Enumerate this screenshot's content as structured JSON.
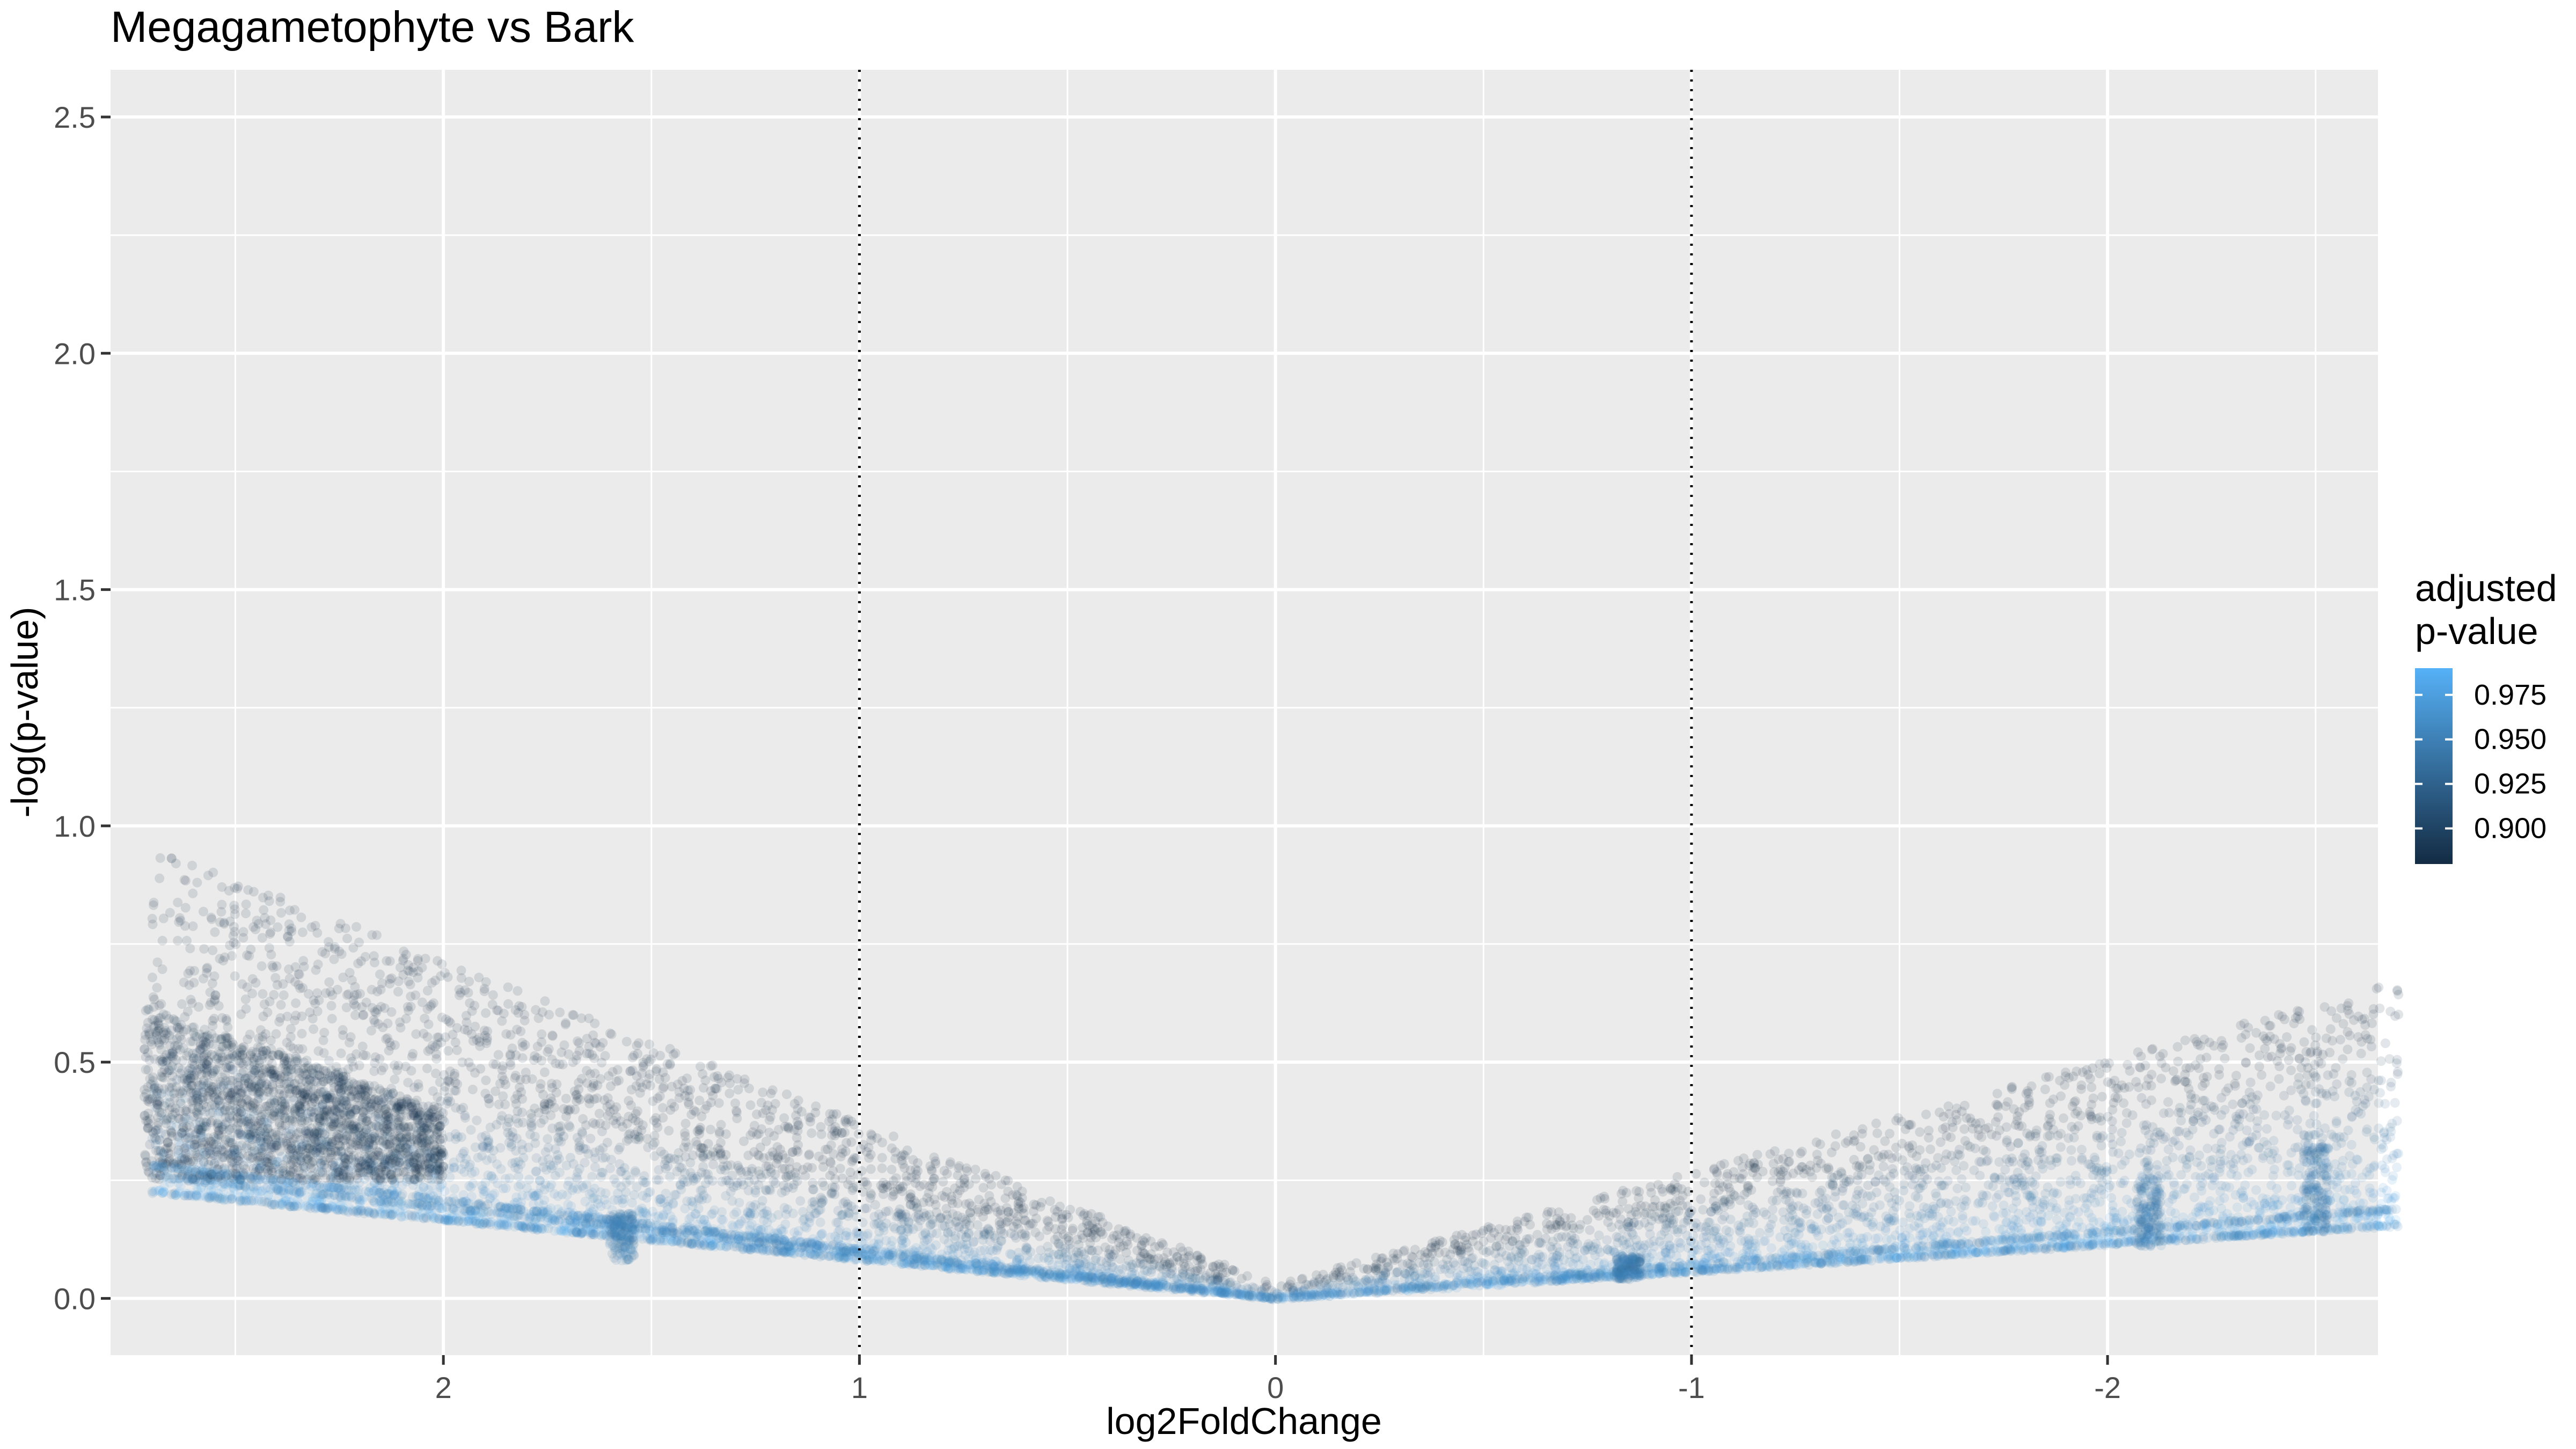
{
  "chart_data": {
    "type": "scatter",
    "title": "Megagametophyte vs Bark",
    "xlabel": "log2FoldChange",
    "ylabel": "-log(p-value)",
    "x_axis_reversed": true,
    "xlim": [
      2.8,
      -2.65
    ],
    "ylim": [
      -0.12,
      2.6
    ],
    "x_ticks": [
      {
        "value": 2,
        "label": "2"
      },
      {
        "value": 1,
        "label": "1"
      },
      {
        "value": 0,
        "label": "0"
      },
      {
        "value": -1,
        "label": "-1"
      },
      {
        "value": -2,
        "label": "-2"
      }
    ],
    "y_ticks": [
      {
        "value": 0.0,
        "label": "0.0"
      },
      {
        "value": 0.5,
        "label": "0.5"
      },
      {
        "value": 1.0,
        "label": "1.0"
      },
      {
        "value": 1.5,
        "label": "1.5"
      },
      {
        "value": 2.0,
        "label": "2.0"
      },
      {
        "value": 2.5,
        "label": "2.5"
      }
    ],
    "reference_lines": [
      {
        "axis": "x",
        "value": 1,
        "style": "dotted"
      },
      {
        "axis": "x",
        "value": -1,
        "style": "dotted"
      }
    ],
    "grid": true,
    "point_opacity": 0.12,
    "colorbar": {
      "title_line1": "adjusted",
      "title_line2": "p-value",
      "range": [
        0.88,
        0.99
      ],
      "ticks": [
        {
          "value": 0.9,
          "label": "0.900"
        },
        {
          "value": 0.925,
          "label": "0.925"
        },
        {
          "value": 0.95,
          "label": "0.950"
        },
        {
          "value": 0.975,
          "label": "0.975"
        }
      ],
      "low_color": "#132B43",
      "high_color": "#56B1F7",
      "position": "right"
    },
    "point_clouds": [
      {
        "x_range": [
          -2.7,
          2.72
        ],
        "y_envelope": "abs_linear",
        "description_units": "data"
      }
    ],
    "bands": [
      {
        "x_from": 2.7,
        "x_to": 0,
        "y_at_from": 0.225,
        "y_at_to": 0
      },
      {
        "x_from": 2.7,
        "x_to": 0,
        "y_at_from": 0.26,
        "y_at_to": 0
      },
      {
        "x_from": 2.7,
        "x_to": 0,
        "y_at_from": 0.28,
        "y_at_to": 0
      },
      {
        "x_from": -2.7,
        "x_to": 0,
        "y_at_from": 0.155,
        "y_at_to": 0
      },
      {
        "x_from": -2.7,
        "x_to": 0,
        "y_at_from": 0.19,
        "y_at_to": 0
      }
    ],
    "vertical_clusters": [
      {
        "x": 1.57,
        "y_min": 0.08,
        "y_max": 0.18
      },
      {
        "x": -0.85,
        "y_min": 0.04,
        "y_max": 0.09
      },
      {
        "x": -2.1,
        "y_min": 0.11,
        "y_max": 0.26
      },
      {
        "x": -2.5,
        "y_min": 0.14,
        "y_max": 0.33
      }
    ]
  }
}
